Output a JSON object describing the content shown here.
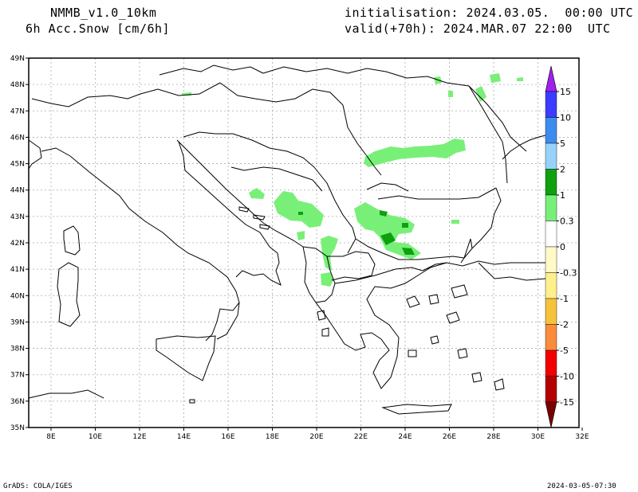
{
  "header": {
    "model": "NMMB_v1.0_10km",
    "field": "6h Acc.Snow [cm/6h]",
    "init": "initialisation: 2024.03.05.  00:00 UTC",
    "valid": "valid(+70h): 2024.MAR.07 22:00  UTC"
  },
  "footer": {
    "credit": "GrADS: COLA/IGES",
    "timestamp": "2024-03-05-07:30"
  },
  "axes": {
    "lat_labels": [
      "49N",
      "48N",
      "47N",
      "46N",
      "45N",
      "44N",
      "43N",
      "42N",
      "41N",
      "40N",
      "39N",
      "38N",
      "37N",
      "36N",
      "35N"
    ],
    "lon_labels": [
      "8E",
      "10E",
      "12E",
      "14E",
      "16E",
      "18E",
      "20E",
      "22E",
      "24E",
      "26E",
      "28E",
      "30E",
      "32E"
    ]
  },
  "colorbar": {
    "labels": [
      "15",
      "10",
      "5",
      "2",
      "1",
      "0.3",
      "0",
      "-0.3",
      "-1",
      "-2",
      "-5",
      "-10",
      "-15"
    ],
    "colors": [
      "#a020f0",
      "#3c3cff",
      "#3c8cf0",
      "#96d2fa",
      "#0fa00f",
      "#78f078",
      "#ffffff",
      "#fffac8",
      "#fff08c",
      "#f5c23c",
      "#fa8c3c",
      "#f00000",
      "#b40000",
      "#780000"
    ]
  },
  "snow_colors": {
    "light": "#78f078",
    "medium": "#0fa00f",
    "dark": "#006400"
  }
}
